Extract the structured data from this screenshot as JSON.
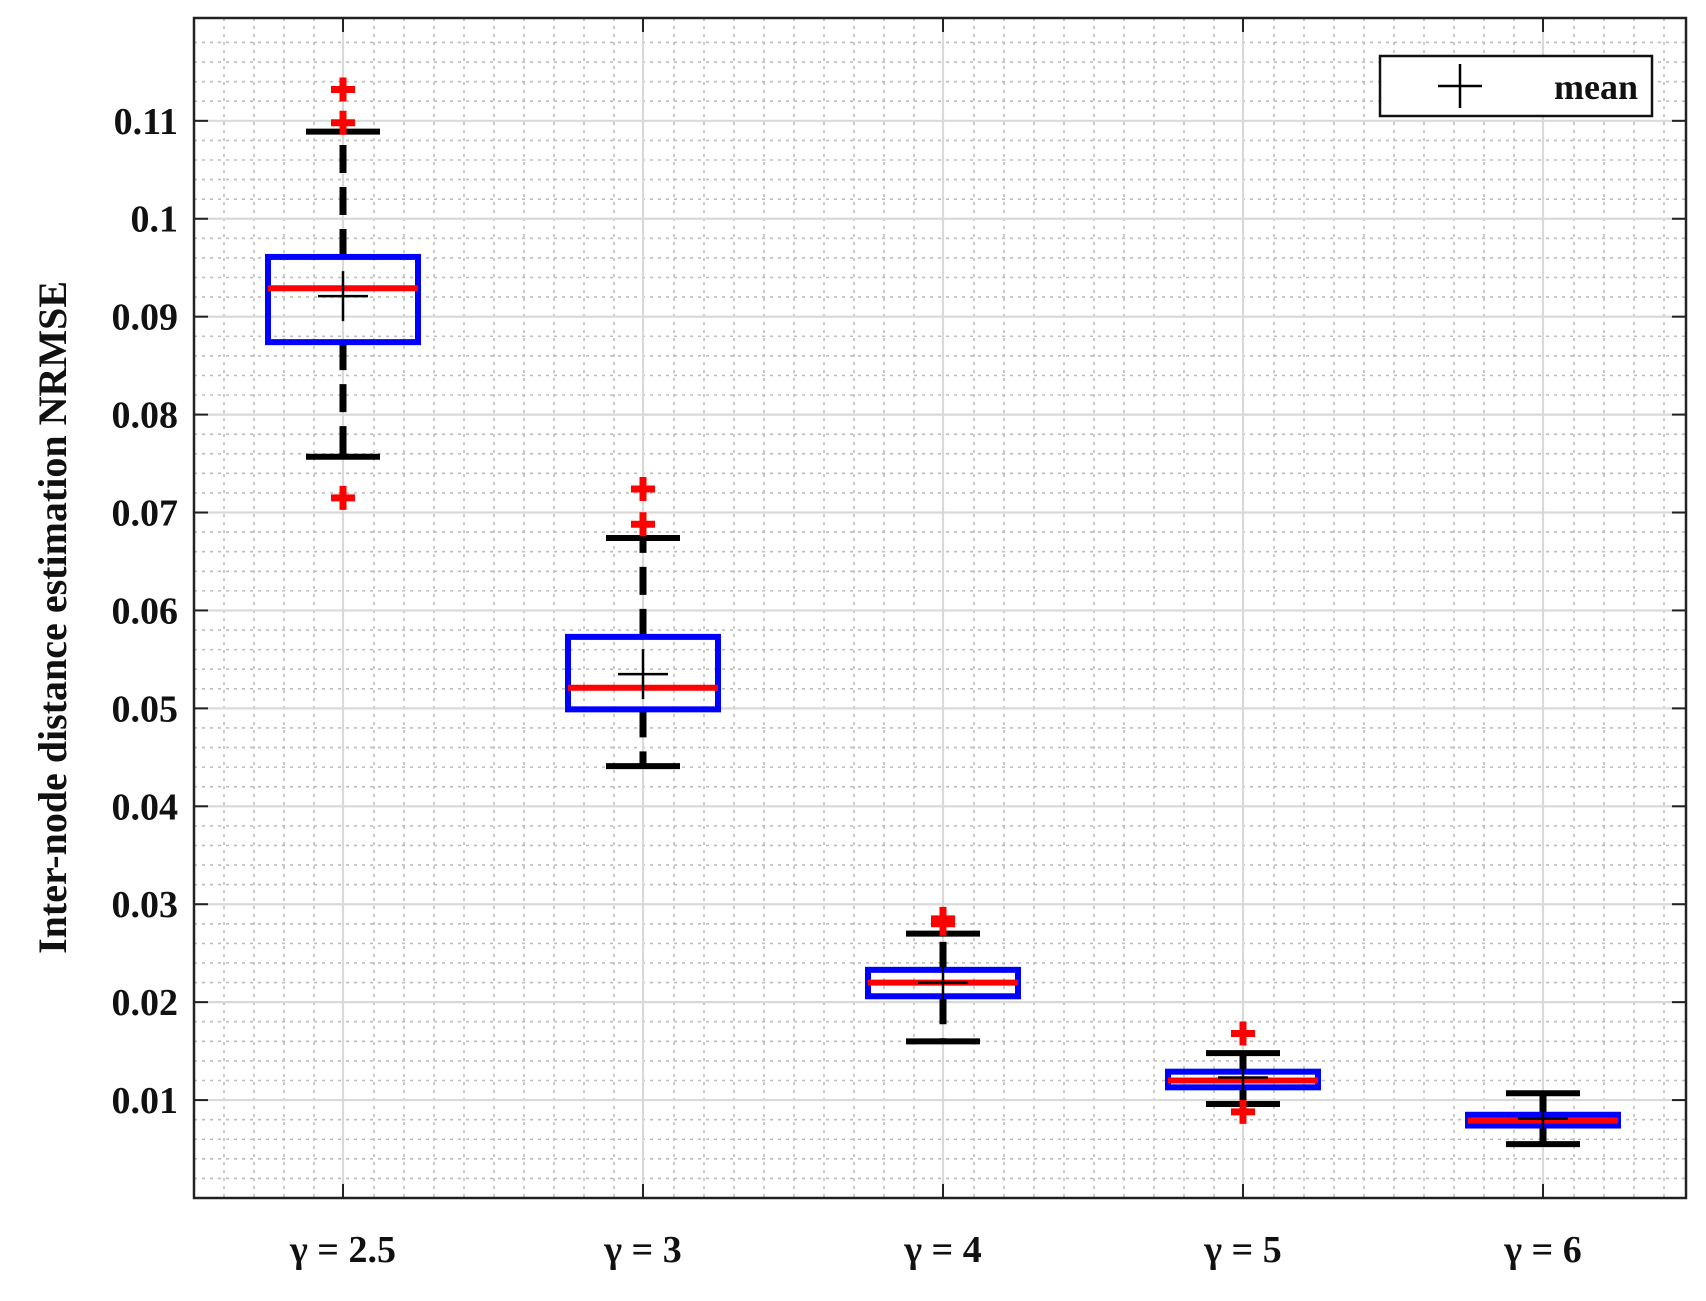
{
  "chart_data": {
    "type": "box",
    "title": "",
    "xlabel": "",
    "ylabel": "Inter-node distance estimation NRMSE",
    "categories": [
      "γ = 2.5",
      "γ = 3",
      "γ = 4",
      "γ = 5",
      "γ = 6"
    ],
    "ylim": [
      0,
      0.1205
    ],
    "yticks": [
      0.01,
      0.02,
      0.03,
      0.04,
      0.05,
      0.06,
      0.07,
      0.08,
      0.09,
      0.1,
      0.11
    ],
    "ytick_labels": [
      "0.01",
      "0.02",
      "0.03",
      "0.04",
      "0.05",
      "0.06",
      "0.07",
      "0.08",
      "0.09",
      "0.1",
      "0.11"
    ],
    "grid": true,
    "minor_grid": true,
    "legend": {
      "label": "mean",
      "position": "top-right"
    },
    "colors": {
      "box": "#0000ff",
      "median": "#ff0000",
      "whisker": "#000000",
      "outlier": "#ff0000",
      "mean": "#000000"
    },
    "boxes": [
      {
        "category": "γ = 2.5",
        "whisker_low": 0.0757,
        "q1": 0.0874,
        "median": 0.0929,
        "q3": 0.0961,
        "whisker_high": 0.1089,
        "mean": 0.0921,
        "outliers": [
          0.0715,
          0.1098,
          0.1132
        ]
      },
      {
        "category": "γ = 3",
        "whisker_low": 0.0441,
        "q1": 0.0499,
        "median": 0.0521,
        "q3": 0.0573,
        "whisker_high": 0.0674,
        "mean": 0.0535,
        "outliers": [
          0.0688,
          0.0724
        ]
      },
      {
        "category": "γ = 4",
        "whisker_low": 0.016,
        "q1": 0.0206,
        "median": 0.022,
        "q3": 0.0233,
        "whisker_high": 0.027,
        "mean": 0.022,
        "outliers": [
          0.028,
          0.0285
        ]
      },
      {
        "category": "γ = 5",
        "whisker_low": 0.0096,
        "q1": 0.0113,
        "median": 0.012,
        "q3": 0.0129,
        "whisker_high": 0.0148,
        "mean": 0.0123,
        "outliers": [
          0.0088,
          0.0168
        ]
      },
      {
        "category": "γ = 6",
        "whisker_low": 0.0055,
        "q1": 0.0074,
        "median": 0.0079,
        "q3": 0.0085,
        "whisker_high": 0.0107,
        "mean": 0.0081,
        "outliers": []
      }
    ]
  }
}
